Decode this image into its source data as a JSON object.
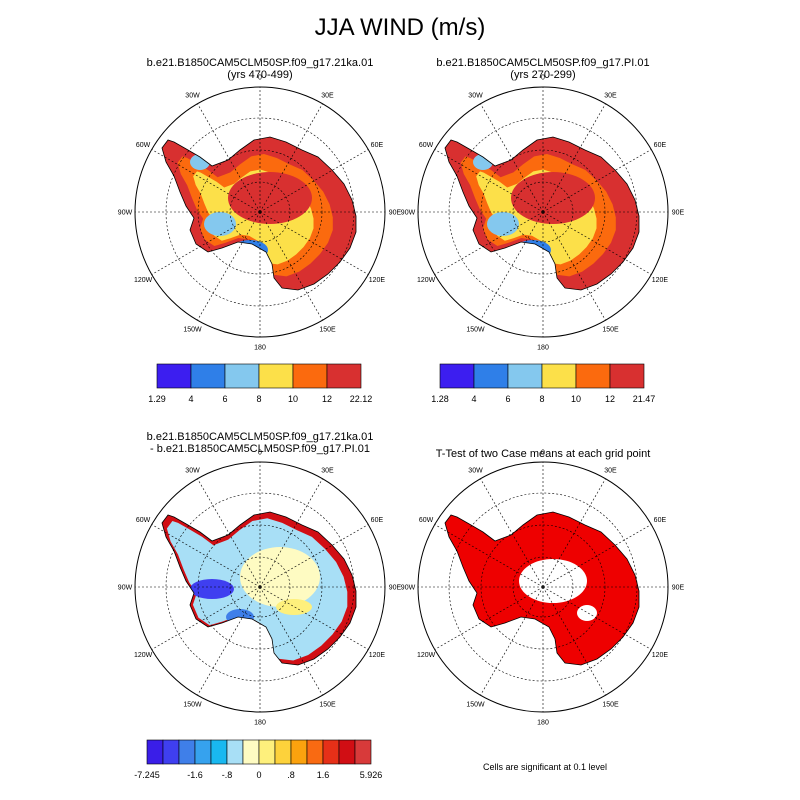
{
  "title": "JJA WIND (m/s)",
  "chart_data": [
    {
      "type": "heatmap",
      "projection": "south-polar-stereographic",
      "title_line1": "b.e21.B1850CAM5CLM50SP.f09_g17.21ka.01",
      "title_line2": "(yrs 470-499)",
      "colorbar": {
        "labels": [
          "1.29",
          "4",
          "6",
          "8",
          "10",
          "12",
          "22.12"
        ],
        "colors": [
          "#3c1ef0",
          "#2f7fe8",
          "#84c8ee",
          "#fce049",
          "#fb6a0e",
          "#d83030"
        ]
      }
    },
    {
      "type": "heatmap",
      "projection": "south-polar-stereographic",
      "title_line1": "b.e21.B1850CAM5CLM50SP.f09_g17.PI.01",
      "title_line2": "(yrs 270-299)",
      "colorbar": {
        "labels": [
          "1.28",
          "4",
          "6",
          "8",
          "10",
          "12",
          "21.47"
        ],
        "colors": [
          "#3c1ef0",
          "#2f7fe8",
          "#84c8ee",
          "#fce049",
          "#fb6a0e",
          "#d83030"
        ]
      }
    },
    {
      "type": "heatmap",
      "projection": "south-polar-stereographic",
      "title_line1": "b.e21.B1850CAM5CLM50SP.f09_g17.21ka.01",
      "title_line2": "- b.e21.B1850CAM5CLM50SP.f09_g17.PI.01",
      "colorbar": {
        "labels": [
          "-7.245",
          "-1.6",
          "-.8",
          "0",
          ".8",
          "1.6",
          "5.926"
        ],
        "colors": [
          "#3a1ee8",
          "#3f3ff0",
          "#3f7fe9",
          "#36a2ee",
          "#19b8f0",
          "#a8dff6",
          "#fefbc2",
          "#fef07c",
          "#fdd23b",
          "#fba20e",
          "#f96a12",
          "#e63018",
          "#d10e14",
          "#d83a3a"
        ]
      }
    },
    {
      "type": "heatmap",
      "projection": "south-polar-stereographic",
      "title_line1": "T-Test of two Case means at each grid point",
      "title_line2": "",
      "note": "Cells are significant at 0.1 level",
      "colors": {
        "significant": "#ee0000"
      }
    }
  ],
  "map": {
    "lon_labels": [
      "0",
      "30E",
      "60E",
      "90E",
      "120E",
      "150E",
      "180",
      "150W",
      "120W",
      "90W",
      "60W",
      "30W"
    ]
  }
}
